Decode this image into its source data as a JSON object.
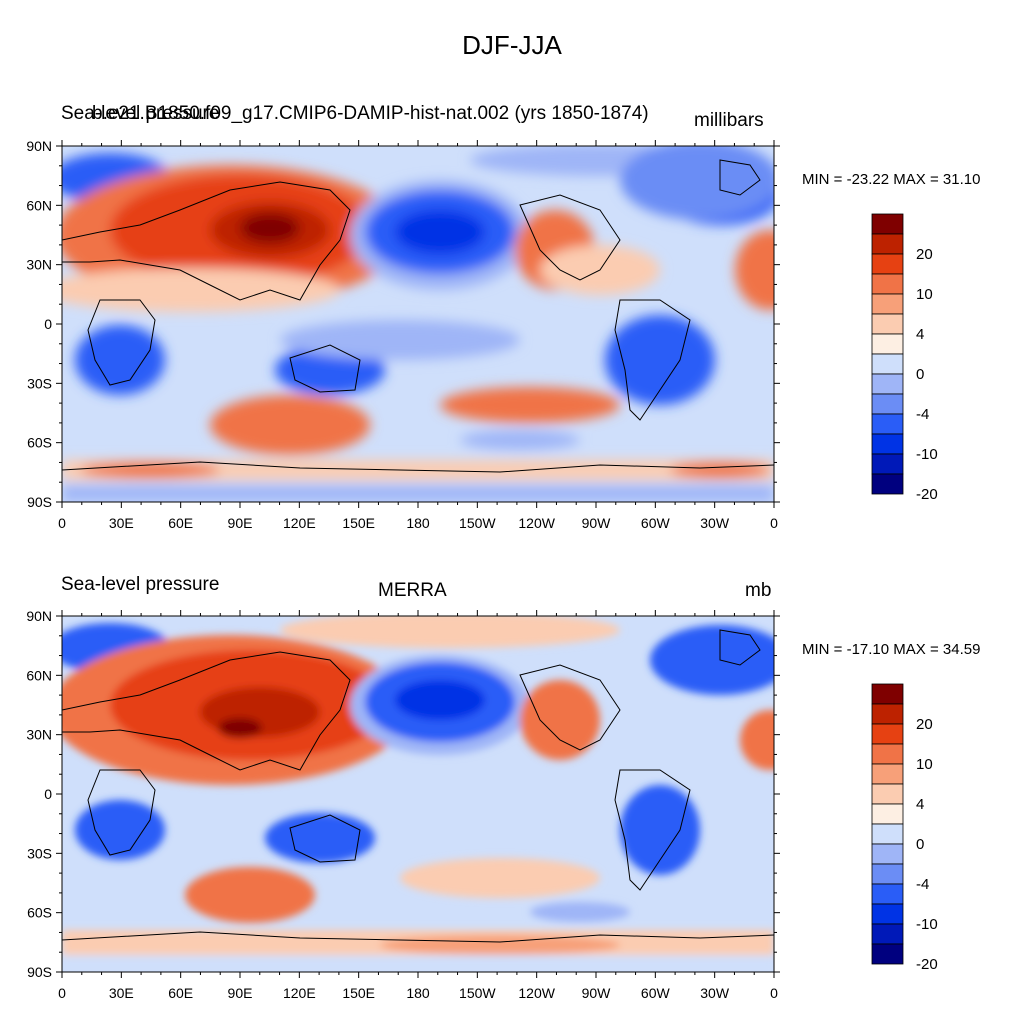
{
  "main_title": "DJF-JJA",
  "colorbar": {
    "colors": [
      "#00007f",
      "#0019b8",
      "#0033e5",
      "#2a5df7",
      "#6b8df5",
      "#9fb5f7",
      "#cfdffb",
      "#fdefe3",
      "#fbccb1",
      "#f7a079",
      "#f07347",
      "#e64112",
      "#bd2200",
      "#7f0000"
    ],
    "labels": [
      "20",
      "10",
      "4",
      "0",
      "-4",
      "-10",
      "-20"
    ]
  },
  "axes": {
    "lat_labels": [
      "90N",
      "60N",
      "30N",
      "0",
      "30S",
      "60S",
      "90S"
    ],
    "lon_labels": [
      "0",
      "30E",
      "60E",
      "90E",
      "120E",
      "150E",
      "180",
      "150W",
      "120W",
      "90W",
      "60W",
      "30W",
      "0"
    ]
  },
  "panels": [
    {
      "left_title": "Sea-level pressure",
      "center_title": "b.e21.B1850.f09_g17.CMIP6-DAMIP-hist-nat.002 (yrs 1850-1874)",
      "right_title": "millibars",
      "minmax": "MIN = -23.22 MAX =  31.10"
    },
    {
      "left_title": "Sea-level pressure",
      "center_title": "MERRA",
      "right_title": "mb",
      "minmax": "MIN = -17.10 MAX =  34.59"
    }
  ]
}
